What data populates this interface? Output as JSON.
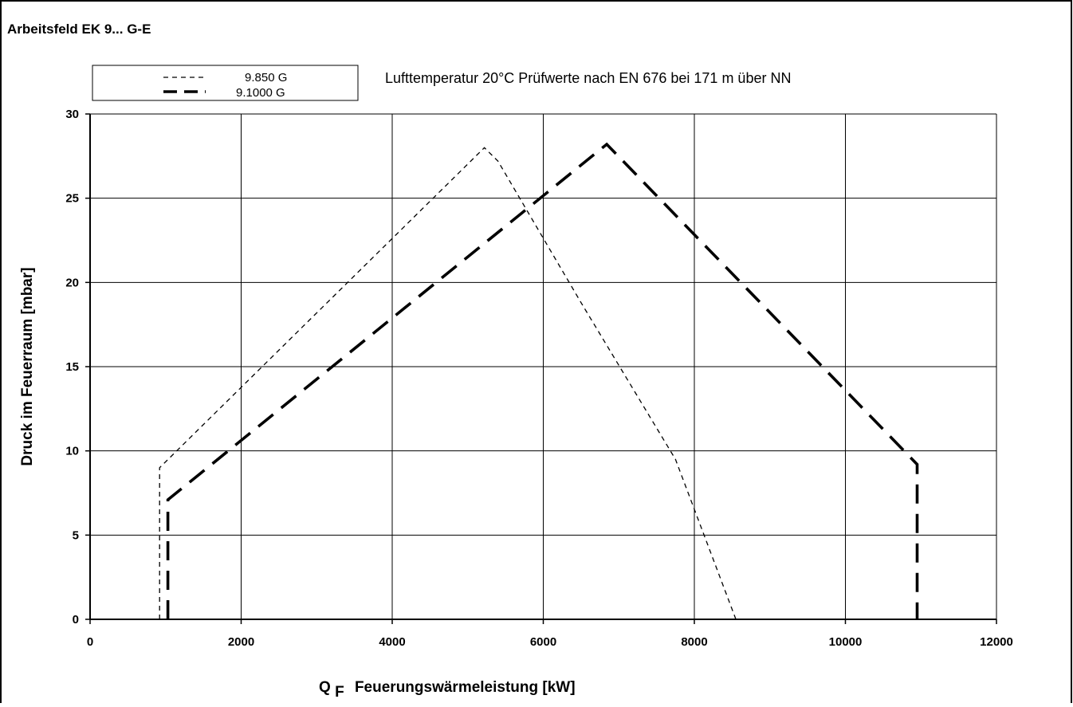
{
  "chart_data": {
    "type": "line",
    "title": "Arbeitsfeld EK 9... G-E",
    "annotation": "Lufttemperatur 20°C Prüfwerte nach EN 676 bei 171 m über NN",
    "xlabel_prefix": "Q",
    "xlabel_subscript": "F",
    "xlabel_text": "Feuerungswärmeleistung [kW]",
    "ylabel": "Druck im Feuerraum [mbar]",
    "xlim": [
      0,
      12000
    ],
    "ylim": [
      0,
      30
    ],
    "xticks": [
      0,
      2000,
      4000,
      6000,
      8000,
      10000,
      12000
    ],
    "yticks": [
      0,
      5,
      10,
      15,
      20,
      25,
      30
    ],
    "xtick_labels": [
      "0",
      "2000",
      "4000",
      "6000",
      "8000",
      "10000",
      "12000"
    ],
    "ytick_labels": [
      "0",
      "5",
      "10",
      "15",
      "20",
      "25",
      "30"
    ],
    "grid": true,
    "legend_position": "top-left",
    "series": [
      {
        "name": "9.850 G",
        "style": "short-dash-thin",
        "color": "#000000",
        "points": [
          [
            920,
            0
          ],
          [
            920,
            9
          ],
          [
            5220,
            28
          ],
          [
            5400,
            27.2
          ],
          [
            6500,
            18.8
          ],
          [
            7750,
            9.5
          ],
          [
            8550,
            0
          ]
        ]
      },
      {
        "name": "9.1000 G",
        "style": "long-dash-thick",
        "color": "#000000",
        "points": [
          [
            1030,
            0
          ],
          [
            1030,
            7.1
          ],
          [
            6840,
            28.2
          ],
          [
            10950,
            9.2
          ],
          [
            10950,
            0
          ]
        ]
      }
    ]
  }
}
